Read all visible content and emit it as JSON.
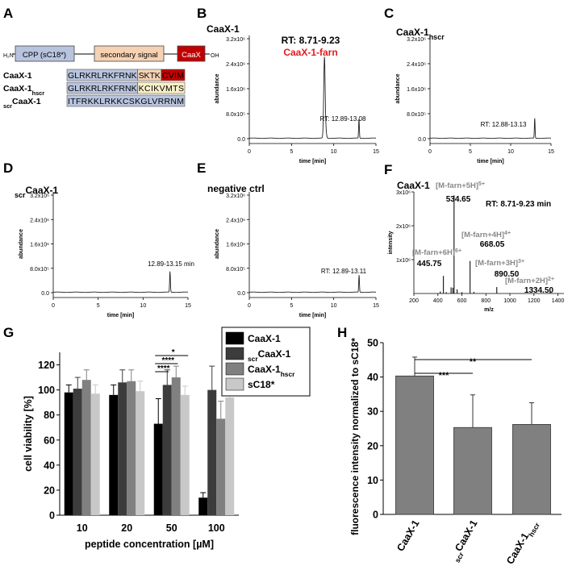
{
  "panelA": {
    "letter": "A",
    "construct": {
      "n_term": "H₂N",
      "cpp": "CPP (sC18*)",
      "secondary": "secondary signal",
      "caax": "CaaX",
      "c_term": "OH",
      "colors": {
        "cpp": "#b8c4de",
        "secondary": "#f5d2b4",
        "caax": "#c00000"
      }
    },
    "sequences": [
      {
        "name": "CaaX-1",
        "sub": "",
        "pre": "",
        "parts": [
          {
            "t": "GLRKRLRKFRNK",
            "c": "#b8c4de"
          },
          {
            "t": "SKTK",
            "c": "#f5d2b4"
          },
          {
            "t": "CVIM",
            "c": "#c00000",
            "fg": "#000"
          }
        ]
      },
      {
        "name": "CaaX-1",
        "sub": "hscr",
        "pre": "",
        "parts": [
          {
            "t": "GLRKRLRKFRNK",
            "c": "#b8c4de"
          },
          {
            "t": "KCIKVMTS",
            "c": "#f8f0c8"
          }
        ]
      },
      {
        "name": "CaaX-1",
        "sub": "",
        "pre": "scr",
        "parts": [
          {
            "t": "ITFRKKLRKKCSKGLVRRNM",
            "c": "#b8c4de"
          }
        ]
      }
    ]
  },
  "chart_data": [
    {
      "id": "B",
      "type": "line",
      "letter": "B",
      "title": "CaaX-1",
      "title_sub": "",
      "xlabel": "time [min]",
      "ylabel": "abundance",
      "xlim": [
        0,
        15
      ],
      "ylim": [
        0,
        3200000
      ],
      "xticks": [
        "0",
        "5",
        "10",
        "15"
      ],
      "yticks": [
        "0.0",
        "8.0x10⁵",
        "1.6x10⁶",
        "2.4x10⁶",
        "3.2x10⁶"
      ],
      "peaks": [
        {
          "x": 8.9,
          "y": 2600000,
          "w": 0.12
        },
        {
          "x": 9.1,
          "y": 150000,
          "w": 0.1
        },
        {
          "x": 12.99,
          "y": 620000,
          "w": 0.06
        }
      ],
      "annotations": [
        {
          "text": "RT: 8.71-9.23",
          "color": "#000",
          "size": 12,
          "bold": true
        },
        {
          "text": "CaaX-1-farn",
          "color": "#e31a1c",
          "size": 12,
          "bold": true
        },
        {
          "text": "RT: 12.89-13.08",
          "color": "#000",
          "size": 8,
          "bold": false
        }
      ]
    },
    {
      "id": "C",
      "type": "line",
      "letter": "C",
      "title": "CaaX-1",
      "title_sub": "hscr",
      "xlabel": "time [min]",
      "ylabel": "abundance",
      "xlim": [
        0,
        15
      ],
      "ylim": [
        0,
        3200000
      ],
      "xticks": [
        "0",
        "5",
        "10",
        "15"
      ],
      "yticks": [
        "0.0",
        "8.0x10⁵",
        "1.6x10⁶",
        "2.4x10⁶",
        "3.2x10⁶"
      ],
      "peaks": [
        {
          "x": 12.98,
          "y": 640000,
          "w": 0.06
        }
      ],
      "annotations": [
        {
          "text": "RT: 12.88-13.13",
          "color": "#000",
          "size": 8,
          "bold": false
        }
      ]
    },
    {
      "id": "D",
      "type": "line",
      "letter": "D",
      "title": "CaaX-1",
      "title_pre": "scr",
      "xlabel": "time [min]",
      "ylabel": "abundance",
      "xlim": [
        0,
        15
      ],
      "ylim": [
        0,
        3200000
      ],
      "xticks": [
        "0",
        "5",
        "10",
        "15"
      ],
      "yticks": [
        "0.0",
        "8.0x10⁵",
        "1.6x10⁶",
        "2.4x10⁶",
        "3.2x10⁶"
      ],
      "peaks": [
        {
          "x": 13.0,
          "y": 680000,
          "w": 0.06
        }
      ],
      "annotations": [
        {
          "text": "12.89-13.15 min",
          "color": "#000",
          "size": 8,
          "bold": false
        }
      ]
    },
    {
      "id": "E",
      "type": "line",
      "letter": "E",
      "title": "negative ctrl",
      "title_sub": "",
      "xlabel": "time [min]",
      "ylabel": "abundance",
      "xlim": [
        0,
        15
      ],
      "ylim": [
        0,
        3200000
      ],
      "xticks": [
        "0",
        "5",
        "10",
        "15"
      ],
      "yticks": [
        "0.0",
        "8.0x10⁵",
        "1.6x10⁶",
        "2.4x10⁶",
        "3.2x10⁶"
      ],
      "peaks": [
        {
          "x": 13.0,
          "y": 560000,
          "w": 0.06
        }
      ],
      "annotations": [
        {
          "text": "RT: 12.89-13.11",
          "color": "#000",
          "size": 8,
          "bold": false
        }
      ]
    },
    {
      "id": "F",
      "type": "bar",
      "letter": "F",
      "title": "CaaX-1",
      "xlabel": "m/z",
      "ylabel": "intensity",
      "xlim": [
        200,
        1450
      ],
      "ylim": [
        0,
        3000000
      ],
      "xticks": [
        "200",
        "400",
        "600",
        "800",
        "1000",
        "1200",
        "1400"
      ],
      "yticks": [
        "1x10⁶",
        "2x10⁶",
        "3x10⁶"
      ],
      "rt_label": "RT: 8.71-9.23 min",
      "sticks": [
        {
          "x": 445.75,
          "y": 520000
        },
        {
          "x": 420,
          "y": 60000
        },
        {
          "x": 470,
          "y": 40000
        },
        {
          "x": 510,
          "y": 180000
        },
        {
          "x": 525,
          "y": 170000
        },
        {
          "x": 534.65,
          "y": 2900000
        },
        {
          "x": 560,
          "y": 120000
        },
        {
          "x": 600,
          "y": 40000
        },
        {
          "x": 668.05,
          "y": 960000
        },
        {
          "x": 700,
          "y": 50000
        },
        {
          "x": 890.5,
          "y": 190000
        },
        {
          "x": 1334.5,
          "y": 70000
        }
      ],
      "ion_labels": [
        {
          "ion": "[M-farn+5H]",
          "charge": "5+",
          "mz": "534.65"
        },
        {
          "ion": "[M-farn+4H]",
          "charge": "4+",
          "mz": "668.05"
        },
        {
          "ion": "[M-farn+6H]",
          "charge": "6+",
          "mz": "445.75"
        },
        {
          "ion": "[M-farn+3H]",
          "charge": "3+",
          "mz": "890.50"
        },
        {
          "ion": "[M-farn+2H]",
          "charge": "2+",
          "mz": "1334.50"
        }
      ],
      "ion_color": "#888888"
    },
    {
      "id": "G",
      "type": "bar",
      "letter": "G",
      "xlabel": "peptide concentration [µM]",
      "ylabel": "cell viability [%]",
      "ylim": [
        0,
        130
      ],
      "yticks": [
        "0",
        "20",
        "40",
        "60",
        "80",
        "100",
        "120"
      ],
      "categories": [
        "10",
        "20",
        "50",
        "100"
      ],
      "series": [
        {
          "name": "CaaX-1",
          "name_pre": "",
          "name_sub": "",
          "color": "#000000",
          "values": [
            98,
            96,
            73,
            14
          ],
          "errors": [
            6,
            8,
            20,
            4
          ]
        },
        {
          "name": "CaaX-1",
          "name_pre": "scr",
          "name_sub": "",
          "color": "#3c3c3c",
          "values": [
            101,
            106,
            104,
            100
          ],
          "errors": [
            9,
            10,
            12,
            19
          ]
        },
        {
          "name": "CaaX-1",
          "name_pre": "",
          "name_sub": "hscr",
          "color": "#808080",
          "values": [
            108,
            107,
            110,
            77
          ],
          "errors": [
            8,
            9,
            9,
            14
          ]
        },
        {
          "name": "sC18*",
          "name_pre": "",
          "name_sub": "",
          "color": "#c8c8c8",
          "values": [
            97,
            99,
            96,
            94
          ],
          "errors": [
            7,
            8,
            7,
            7
          ]
        }
      ],
      "significance": [
        "*",
        "****",
        "****"
      ]
    },
    {
      "id": "H",
      "type": "bar",
      "letter": "H",
      "ylabel": "fluorescence intensity normalized to sC18*",
      "ylim": [
        0,
        50
      ],
      "yticks": [
        "0",
        "10",
        "20",
        "30",
        "40",
        "50"
      ],
      "categories": [
        {
          "name": "CaaX-1",
          "pre": "",
          "sub": ""
        },
        {
          "name": "CaaX-1",
          "pre": "scr",
          "sub": ""
        },
        {
          "name": "CaaX-1",
          "pre": "",
          "sub": "hscr"
        }
      ],
      "values": [
        40.3,
        25.3,
        26.2
      ],
      "errors": [
        5.5,
        9.5,
        6.3
      ],
      "color": "#808080",
      "significance": [
        "***",
        "**"
      ]
    }
  ]
}
